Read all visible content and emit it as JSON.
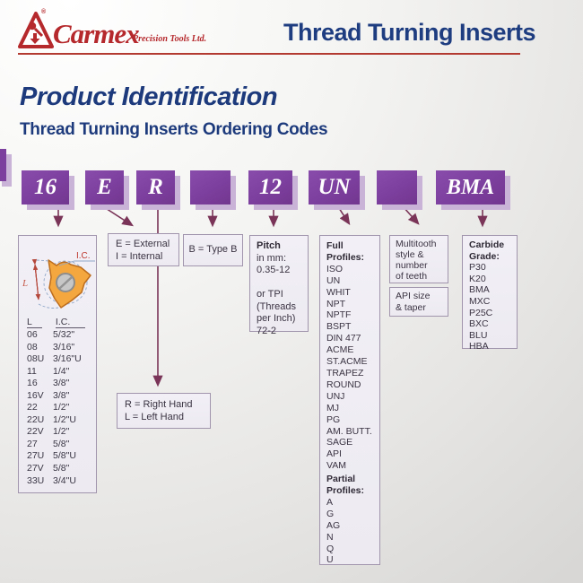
{
  "header": {
    "brand": "Carmex",
    "tagline": "Precision Tools Ltd.",
    "registered": "®",
    "title": "Thread Turning Inserts"
  },
  "section": {
    "title": "Product Identification",
    "subtitle": "Thread Turning Inserts Ordering Codes"
  },
  "colors": {
    "purple_box": "#7d3f9d",
    "purple_shadow": "#c9b3d6",
    "arrow": "#7a3457",
    "heading_blue": "#1d3b7c",
    "brand_red": "#b5282c",
    "info_box_bg": "#efedf3",
    "info_box_border": "#a195ae",
    "insert_orange": "#f3a73e"
  },
  "code_boxes": [
    {
      "id": "size",
      "label": "16"
    },
    {
      "id": "internal-external",
      "label": "E"
    },
    {
      "id": "hand",
      "label": "R"
    },
    {
      "id": "type-b",
      "label": ""
    },
    {
      "id": "pitch",
      "label": "12"
    },
    {
      "id": "profile",
      "label": "UN"
    },
    {
      "id": "multitooth",
      "label": ""
    },
    {
      "id": "grade",
      "label": "BMA"
    }
  ],
  "size_box": {
    "diagram": {
      "l_label": "L",
      "ic_label": "I.C."
    },
    "table": {
      "headers": [
        "L",
        "I.C."
      ],
      "rows": [
        [
          "06",
          "5/32\""
        ],
        [
          "08",
          "3/16\""
        ],
        [
          "08U",
          "3/16\"U"
        ],
        [
          "11",
          "1/4\""
        ],
        [
          "16",
          "3/8\""
        ],
        [
          "16V",
          "3/8\""
        ],
        [
          "22",
          "1/2\""
        ],
        [
          "22U",
          "1/2\"U"
        ],
        [
          "22V",
          "1/2\""
        ],
        [
          "27",
          "5/8\""
        ],
        [
          "27U",
          "5/8\"U"
        ],
        [
          "27V",
          "5/8\""
        ],
        [
          "33U",
          "3/4\"U"
        ]
      ]
    }
  },
  "type_box": {
    "lines": [
      "E = External",
      "I = Internal"
    ]
  },
  "typeb_box": {
    "label": "B = Type B"
  },
  "hand_box": {
    "lines": [
      "R = Right Hand",
      "L = Left Hand"
    ]
  },
  "pitch_box": {
    "title": "Pitch",
    "lines": [
      "in mm:",
      "0.35-12",
      "",
      "or TPI",
      "(Threads",
      "per Inch)",
      "72-2"
    ]
  },
  "profile_box": {
    "full_title": "Full Profiles:",
    "full_items": [
      "ISO",
      "UN",
      "WHIT",
      "NPT",
      "NPTF",
      "BSPT",
      "DIN 477",
      "ACME",
      "ST.ACME",
      "TRAPEZ",
      "ROUND",
      "UNJ",
      "MJ",
      "PG",
      "AM. BUTT.",
      "SAGE",
      "API",
      "VAM"
    ],
    "partial_title": "Partial Profiles:",
    "partial_items": [
      "A",
      "G",
      "AG",
      "N",
      "Q",
      "U"
    ]
  },
  "multitooth_box": {
    "lines": [
      "Multitooth",
      "style &",
      "number",
      "of teeth"
    ]
  },
  "api_box": {
    "lines": [
      "API size",
      "& taper"
    ]
  },
  "grade_box": {
    "title": "Carbide Grade:",
    "items": [
      "P30",
      "K20",
      "BMA",
      "MXC",
      "P25C",
      "BXC",
      "BLU",
      "HBA"
    ]
  }
}
